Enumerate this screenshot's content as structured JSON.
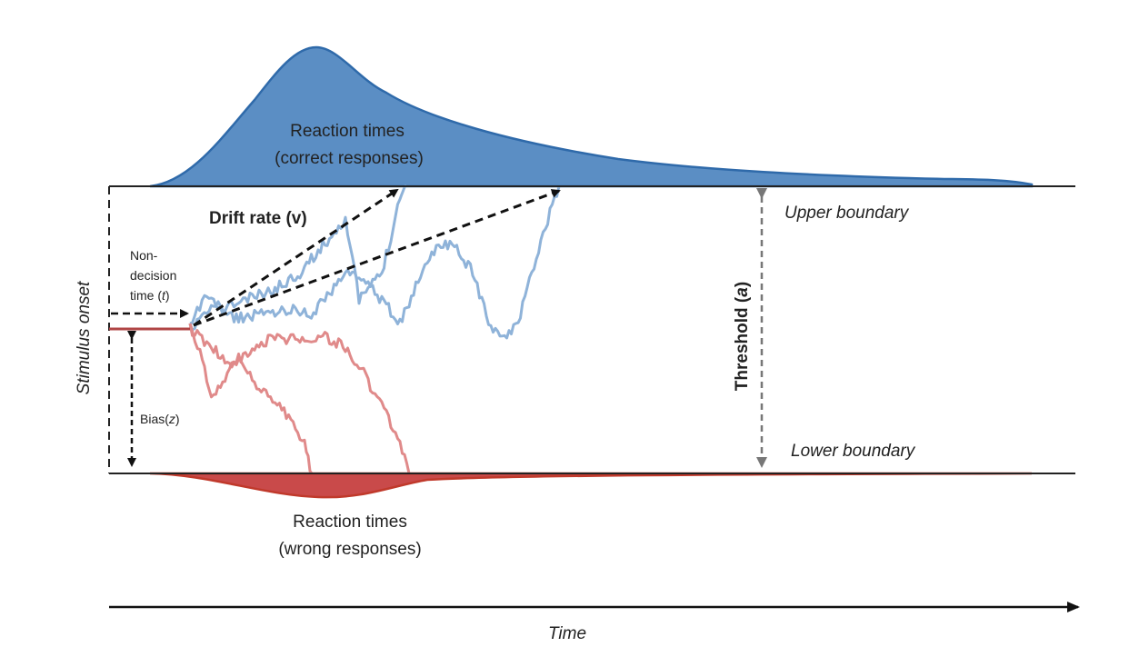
{
  "labels": {
    "rt_correct_line1": "Reaction times",
    "rt_correct_line2": "(correct responses)",
    "rt_wrong_line1": "Reaction times",
    "rt_wrong_line2": "(wrong responses)",
    "drift_rate": "Drift rate (v)",
    "upper_boundary": "Upper boundary",
    "lower_boundary": "Lower boundary",
    "threshold_prefix": "Threshold (",
    "threshold_symbol": "a",
    "threshold_suffix": ")",
    "nondecision_line1": "Non-",
    "nondecision_line2": "decision",
    "nondecision_line3_prefix": "time (",
    "nondecision_symbol": "t",
    "nondecision_line3_suffix": ")",
    "bias_prefix": "Bias(",
    "bias_symbol": "z",
    "bias_suffix": ")",
    "stimulus_onset": "Stimulus onset",
    "time_axis": "Time"
  },
  "colors": {
    "correct_fill": "#5b8ec4",
    "correct_stroke": "#2f6aaa",
    "path_blue": "#8fb3d9",
    "wrong_fill": "#c94a4a",
    "wrong_stroke": "#c0392b",
    "path_red": "#e08a8a",
    "start_line": "#b04545",
    "boundary": "#222222",
    "threshold_arrow": "#777777",
    "drift_arrow": "#111111"
  },
  "icons": {
    "time_arrow": "arrow-right-icon",
    "threshold_arrow": "double-arrow-vertical-icon",
    "bias_arrow": "double-arrow-vertical-icon",
    "nondecision_arrow": "dashed-arrow-right-icon",
    "drift_arrows": "dashed-arrow-icon"
  }
}
